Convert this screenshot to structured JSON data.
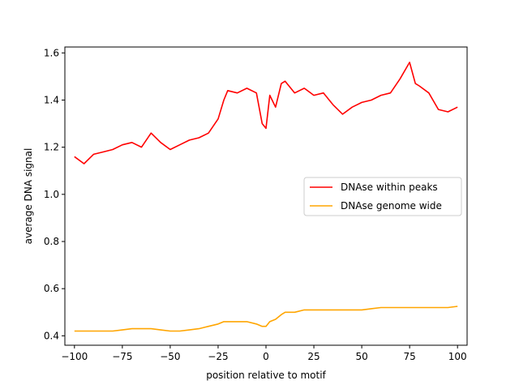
{
  "chart_data": {
    "type": "line",
    "title": "",
    "xlabel": "position relative to motif",
    "ylabel": "average DNA signal",
    "xlim": [
      -105,
      105
    ],
    "ylim": [
      0.36,
      1.625
    ],
    "xticks": [
      -100,
      -75,
      -50,
      -25,
      0,
      25,
      50,
      75,
      100
    ],
    "xtick_labels": [
      "−100",
      "−75",
      "−50",
      "−25",
      "0",
      "25",
      "50",
      "75",
      "100"
    ],
    "yticks": [
      0.4,
      0.6,
      0.8,
      1.0,
      1.2,
      1.4,
      1.6
    ],
    "ytick_labels": [
      "0.4",
      "0.6",
      "0.8",
      "1.0",
      "1.2",
      "1.4",
      "1.6"
    ],
    "grid": false,
    "legend_position": "right",
    "x": [
      -100,
      -95,
      -90,
      -85,
      -80,
      -75,
      -70,
      -65,
      -60,
      -55,
      -50,
      -45,
      -40,
      -35,
      -30,
      -25,
      -22,
      -20,
      -15,
      -10,
      -5,
      -2,
      0,
      2,
      5,
      8,
      10,
      15,
      20,
      25,
      30,
      35,
      40,
      45,
      50,
      55,
      60,
      65,
      70,
      75,
      78,
      80,
      85,
      90,
      95,
      100
    ],
    "series": [
      {
        "name": "DNAse within peaks",
        "color": "#ff0000",
        "values": [
          1.16,
          1.13,
          1.17,
          1.18,
          1.19,
          1.21,
          1.22,
          1.2,
          1.26,
          1.22,
          1.19,
          1.21,
          1.23,
          1.24,
          1.26,
          1.32,
          1.4,
          1.44,
          1.43,
          1.45,
          1.43,
          1.3,
          1.28,
          1.42,
          1.37,
          1.47,
          1.48,
          1.43,
          1.45,
          1.42,
          1.43,
          1.38,
          1.34,
          1.37,
          1.39,
          1.4,
          1.42,
          1.43,
          1.49,
          1.56,
          1.47,
          1.46,
          1.43,
          1.36,
          1.35,
          1.37
        ]
      },
      {
        "name": "DNAse genome wide",
        "color": "#ffa500",
        "values": [
          0.42,
          0.42,
          0.42,
          0.42,
          0.42,
          0.425,
          0.43,
          0.43,
          0.43,
          0.425,
          0.42,
          0.42,
          0.425,
          0.43,
          0.44,
          0.45,
          0.46,
          0.46,
          0.46,
          0.46,
          0.45,
          0.44,
          0.44,
          0.46,
          0.47,
          0.49,
          0.5,
          0.5,
          0.51,
          0.51,
          0.51,
          0.51,
          0.51,
          0.51,
          0.51,
          0.515,
          0.52,
          0.52,
          0.52,
          0.52,
          0.52,
          0.52,
          0.52,
          0.52,
          0.52,
          0.525
        ]
      }
    ]
  }
}
